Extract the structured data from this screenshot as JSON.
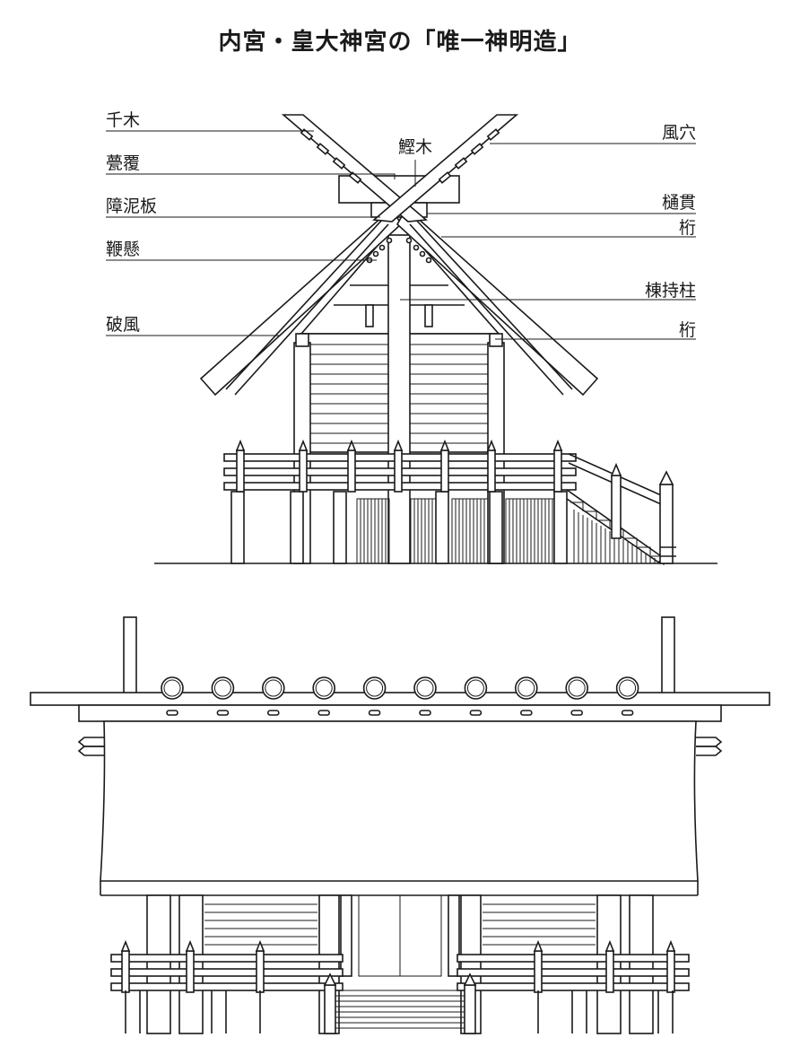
{
  "title": "内宮・皇大神宮の「唯一神明造」",
  "labels": {
    "chigi": "千木",
    "iraka_oi": "甍覆",
    "shodei_ita": "障泥板",
    "muchikake": "鞭懸",
    "hafu": "破風",
    "katsuogi": "鰹木",
    "kazaana": "風穴",
    "hinuki": "樋貫",
    "keta_upper": "桁",
    "munamochi_bashira": "棟持柱",
    "keta_lower": "桁"
  },
  "colors": {
    "line": "#1a1a1a",
    "background": "#ffffff"
  }
}
